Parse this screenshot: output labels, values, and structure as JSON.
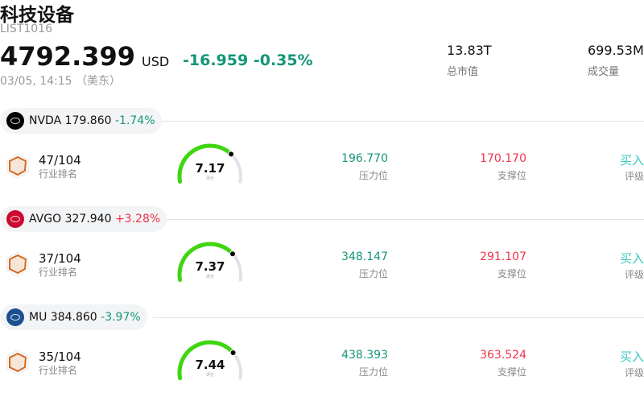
{
  "header": {
    "title": "科技设备",
    "code": "LIST1016",
    "price": "4792.399",
    "currency": "USD",
    "change": "-16.959",
    "change_pct": "-0.35%",
    "time": "03/05, 14:15 （美东）"
  },
  "stats": [
    {
      "value": "13.83T",
      "label": "总市值"
    },
    {
      "value": "699.53M",
      "label": "成交量"
    }
  ],
  "colors": {
    "up": "#f0334a",
    "down": "#14967a",
    "gauge": "#3ed60f",
    "rating": "#3cc8c0"
  },
  "stocks": [
    {
      "ticker": "NVDA",
      "price": "179.860",
      "change_pct": "-1.74%",
      "direction": "down",
      "logo_color": "#000000",
      "rank": "47/104",
      "rank_label": "行业排名",
      "score": "7.17",
      "score_label": "评分",
      "resistance": "196.770",
      "resistance_label": "压力位",
      "support": "170.170",
      "support_label": "支撑位",
      "rating": "买入",
      "rating_label": "评级"
    },
    {
      "ticker": "AVGO",
      "price": "327.940",
      "change_pct": "+3.28%",
      "direction": "up",
      "logo_color": "#cc092f",
      "rank": "37/104",
      "rank_label": "行业排名",
      "score": "7.37",
      "score_label": "评分",
      "resistance": "348.147",
      "resistance_label": "压力位",
      "support": "291.107",
      "support_label": "支撑位",
      "rating": "买入",
      "rating_label": "评级"
    },
    {
      "ticker": "MU",
      "price": "384.860",
      "change_pct": "-3.97%",
      "direction": "down",
      "logo_color": "#1b4f8f",
      "rank": "35/104",
      "rank_label": "行业排名",
      "score": "7.44",
      "score_label": "评分",
      "resistance": "438.393",
      "resistance_label": "压力位",
      "support": "363.524",
      "support_label": "支撑位",
      "rating": "买入",
      "rating_label": "评级"
    }
  ]
}
